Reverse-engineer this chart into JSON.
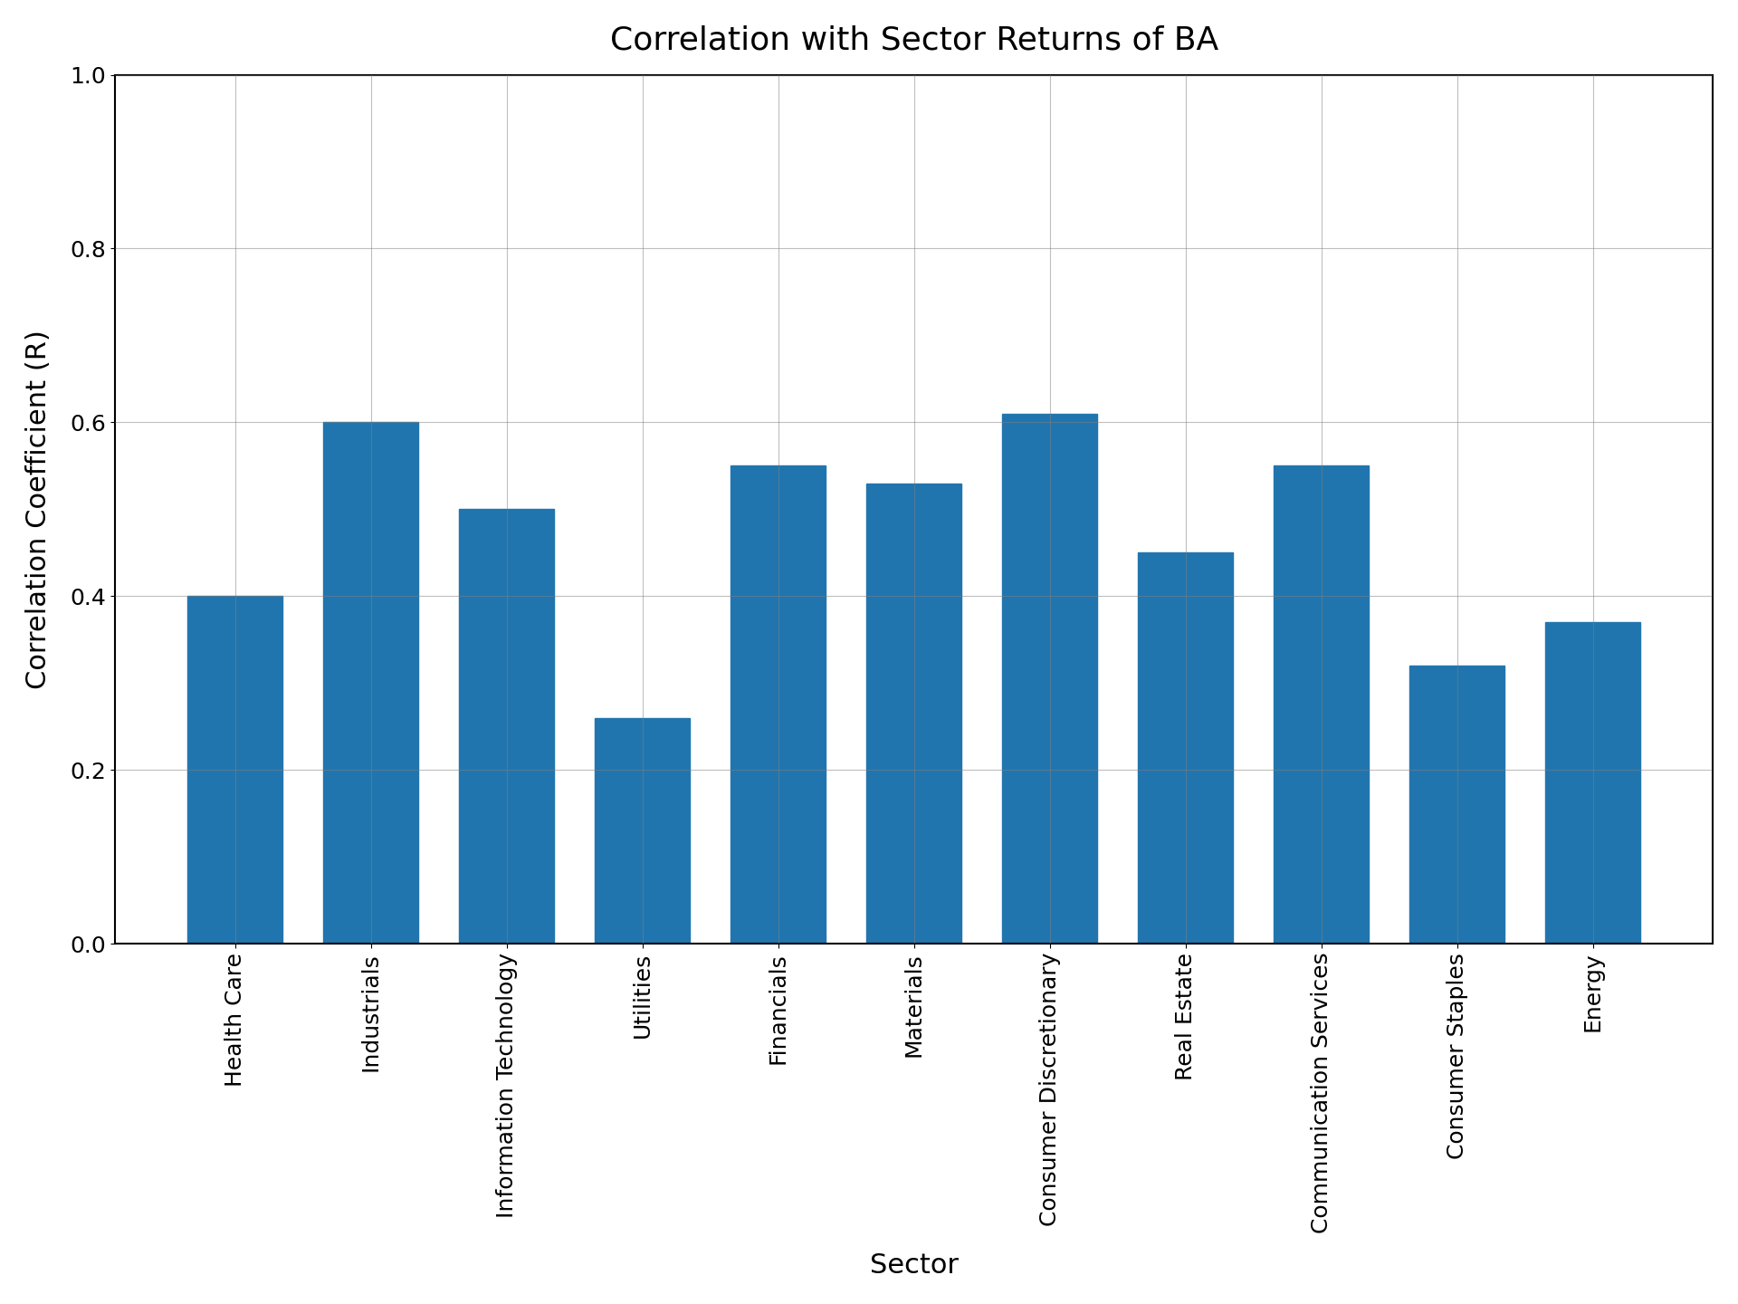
{
  "title": "Correlation with Sector Returns of BA",
  "xlabel": "Sector",
  "ylabel": "Correlation Coefficient (R)",
  "categories": [
    "Health Care",
    "Industrials",
    "Information Technology",
    "Utilities",
    "Financials",
    "Materials",
    "Consumer Discretionary",
    "Real Estate",
    "Communication Services",
    "Consumer Staples",
    "Energy"
  ],
  "values": [
    0.4,
    0.6,
    0.5,
    0.26,
    0.55,
    0.53,
    0.61,
    0.45,
    0.55,
    0.32,
    0.37
  ],
  "bar_color": "#2175ae",
  "ylim": [
    0.0,
    1.0
  ],
  "yticks": [
    0.0,
    0.2,
    0.4,
    0.6,
    0.8,
    1.0
  ],
  "title_fontsize": 26,
  "label_fontsize": 22,
  "tick_fontsize": 18,
  "bar_width": 0.7,
  "grid": true,
  "background_color": "#ffffff"
}
